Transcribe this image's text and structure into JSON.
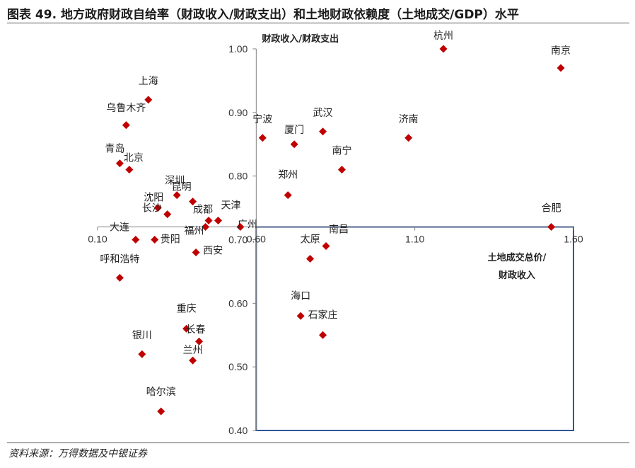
{
  "title": "图表 49. 地方政府财政自给率（财政收入/财政支出）和土地财政依赖度（土地成交/GDP）水平",
  "source": "资料来源：万得数据及中银证券",
  "chart_data": {
    "type": "scatter",
    "title": "图表 49. 地方政府财政自给率（财政收入/财政支出）和土地财政依赖度（土地成交/GDP）水平",
    "xlabel": [
      "土地成交总价/",
      "财政收入"
    ],
    "ylabel": "财政收入/财政支出",
    "xlim": [
      0.1,
      1.6
    ],
    "ylim": [
      0.4,
      1.0
    ],
    "x_axis_crosses_y": 0.72,
    "x_ticks": [
      "0.10",
      "0.60",
      "1.10",
      "1.60"
    ],
    "y_ticks": [
      "0.40",
      "0.50",
      "0.60",
      "0.70",
      "0.80",
      "0.90",
      "1.00"
    ],
    "grid": false,
    "marker_color": "#c00000",
    "highlight_box": {
      "x": [
        0.6,
        1.6
      ],
      "y": [
        0.4,
        0.72
      ],
      "color": "#2e5597"
    },
    "points": [
      {
        "label": "杭州",
        "x": 1.19,
        "y": 1.0
      },
      {
        "label": "南京",
        "x": 1.56,
        "y": 0.97
      },
      {
        "label": "上海",
        "x": 0.26,
        "y": 0.92
      },
      {
        "label": "乌鲁木齐",
        "x": 0.19,
        "y": 0.88
      },
      {
        "label": "宁波",
        "x": 0.62,
        "y": 0.86
      },
      {
        "label": "厦门",
        "x": 0.72,
        "y": 0.85
      },
      {
        "label": "武汉",
        "x": 0.81,
        "y": 0.87
      },
      {
        "label": "济南",
        "x": 1.08,
        "y": 0.86
      },
      {
        "label": "青岛",
        "x": 0.17,
        "y": 0.82
      },
      {
        "label": "北京",
        "x": 0.2,
        "y": 0.81
      },
      {
        "label": "南宁",
        "x": 0.87,
        "y": 0.81
      },
      {
        "label": "深圳",
        "x": 0.35,
        "y": 0.77
      },
      {
        "label": "昆明",
        "x": 0.4,
        "y": 0.76
      },
      {
        "label": "郑州",
        "x": 0.7,
        "y": 0.77
      },
      {
        "label": "沈阳",
        "x": 0.29,
        "y": 0.75
      },
      {
        "label": "成都",
        "x": 0.45,
        "y": 0.73
      },
      {
        "label": "天津",
        "x": 0.48,
        "y": 0.73
      },
      {
        "label": "长沙",
        "x": 0.32,
        "y": 0.74
      },
      {
        "label": "福州",
        "x": 0.44,
        "y": 0.72
      },
      {
        "label": "广州",
        "x": 0.55,
        "y": 0.72
      },
      {
        "label": "合肥",
        "x": 1.53,
        "y": 0.72
      },
      {
        "label": "大连",
        "x": 0.22,
        "y": 0.7
      },
      {
        "label": "贵阳",
        "x": 0.28,
        "y": 0.7
      },
      {
        "label": "南昌",
        "x": 0.82,
        "y": 0.69
      },
      {
        "label": "西安",
        "x": 0.41,
        "y": 0.68
      },
      {
        "label": "太原",
        "x": 0.77,
        "y": 0.67
      },
      {
        "label": "呼和浩特",
        "x": 0.17,
        "y": 0.64
      },
      {
        "label": "海口",
        "x": 0.74,
        "y": 0.58
      },
      {
        "label": "重庆",
        "x": 0.38,
        "y": 0.56
      },
      {
        "label": "石家庄",
        "x": 0.81,
        "y": 0.55
      },
      {
        "label": "长春",
        "x": 0.42,
        "y": 0.54
      },
      {
        "label": "银川",
        "x": 0.24,
        "y": 0.52
      },
      {
        "label": "兰州",
        "x": 0.4,
        "y": 0.51
      },
      {
        "label": "哈尔滨",
        "x": 0.3,
        "y": 0.43
      }
    ]
  }
}
